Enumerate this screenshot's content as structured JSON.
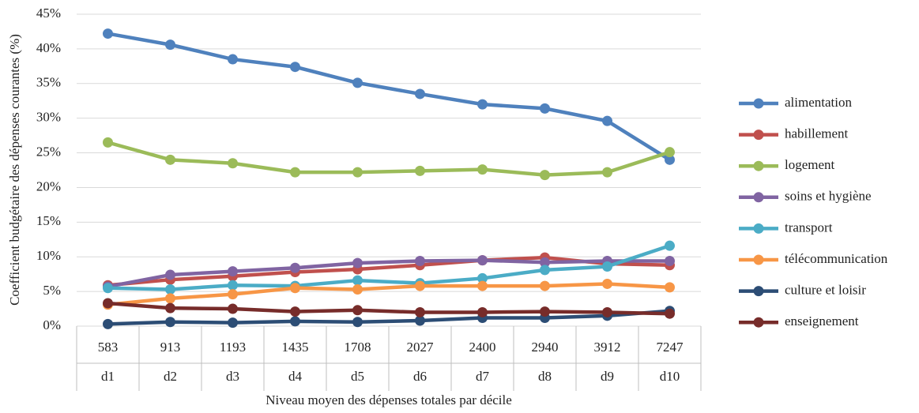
{
  "chart_data": {
    "type": "line",
    "y_label": "Coefficient budgétaire des dépenses courantes (%)",
    "x_label": "Niveau moyen des dépenses totales par décile",
    "categories": [
      "583",
      "913",
      "1193",
      "1435",
      "1708",
      "2027",
      "2400",
      "2940",
      "3912",
      "7247"
    ],
    "deciles": [
      "d1",
      "d2",
      "d3",
      "d4",
      "d5",
      "d6",
      "d7",
      "d8",
      "d9",
      "d10"
    ],
    "ylim": [
      0,
      45
    ],
    "yticks": [
      {
        "value": 0,
        "label": "0%"
      },
      {
        "value": 5,
        "label": "5%"
      },
      {
        "value": 10,
        "label": "10%"
      },
      {
        "value": 15,
        "label": "15%"
      },
      {
        "value": 20,
        "label": "20%"
      },
      {
        "value": 25,
        "label": "25%"
      },
      {
        "value": 30,
        "label": "30%"
      },
      {
        "value": 35,
        "label": "35%"
      },
      {
        "value": 40,
        "label": "40%"
      },
      {
        "value": 45,
        "label": "45%"
      }
    ],
    "grid": true,
    "legend": "right",
    "series": [
      {
        "name": "alimentation",
        "color": "#4f81bd",
        "values": [
          42.2,
          40.6,
          38.5,
          37.4,
          35.1,
          33.5,
          32.0,
          31.4,
          29.6,
          24.0
        ]
      },
      {
        "name": "habillement",
        "color": "#c0504d",
        "values": [
          5.9,
          6.7,
          7.2,
          7.8,
          8.2,
          8.8,
          9.5,
          9.9,
          9.0,
          8.8
        ]
      },
      {
        "name": "logement",
        "color": "#9bbb59",
        "values": [
          26.5,
          24.0,
          23.5,
          22.2,
          22.2,
          22.4,
          22.6,
          21.8,
          22.2,
          25.1
        ]
      },
      {
        "name": "soins et hygiène",
        "color": "#8064a2",
        "values": [
          5.7,
          7.4,
          7.9,
          8.4,
          9.1,
          9.4,
          9.5,
          9.2,
          9.4,
          9.4
        ]
      },
      {
        "name": "transport",
        "color": "#4bacc6",
        "values": [
          5.5,
          5.3,
          5.9,
          5.8,
          6.6,
          6.2,
          6.9,
          8.1,
          8.6,
          11.6
        ]
      },
      {
        "name": "télécommunication",
        "color": "#f79646",
        "values": [
          3.1,
          4.0,
          4.6,
          5.5,
          5.3,
          5.8,
          5.8,
          5.8,
          6.1,
          5.6
        ]
      },
      {
        "name": "culture et loisir",
        "color": "#2c4d75",
        "values": [
          0.3,
          0.6,
          0.5,
          0.7,
          0.6,
          0.8,
          1.2,
          1.2,
          1.5,
          2.2
        ]
      },
      {
        "name": "enseignement",
        "color": "#772c2a",
        "values": [
          3.3,
          2.6,
          2.5,
          2.1,
          2.3,
          2.0,
          2.0,
          2.1,
          2.0,
          1.8
        ]
      }
    ]
  }
}
